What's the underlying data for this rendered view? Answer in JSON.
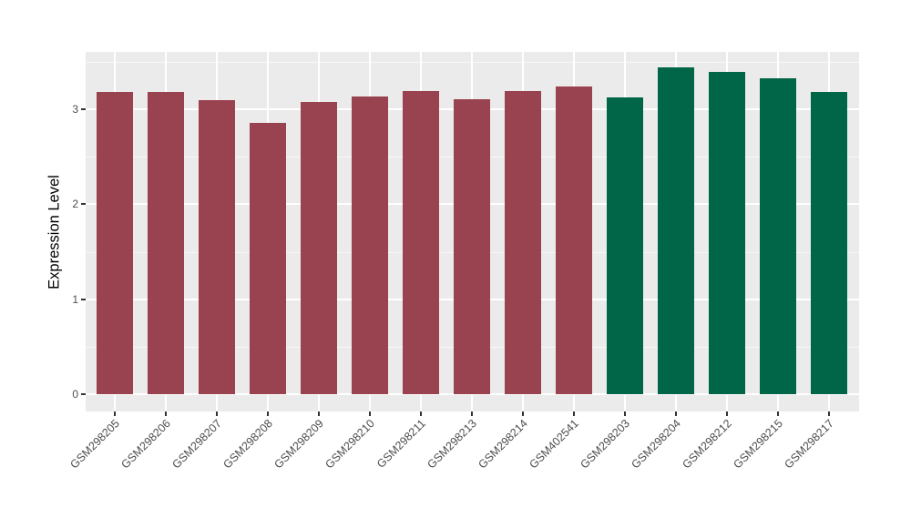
{
  "chart_data": {
    "type": "bar",
    "title": "",
    "xlabel": "",
    "ylabel": "Expression Level",
    "categories": [
      "GSM298205",
      "GSM298206",
      "GSM298207",
      "GSM298208",
      "GSM298209",
      "GSM298210",
      "GSM298211",
      "GSM298213",
      "GSM298214",
      "GSM402541",
      "GSM298203",
      "GSM298204",
      "GSM298212",
      "GSM298215",
      "GSM298217"
    ],
    "values": [
      3.18,
      3.18,
      3.1,
      2.86,
      3.08,
      3.13,
      3.19,
      3.11,
      3.19,
      3.24,
      3.12,
      3.44,
      3.39,
      3.33,
      3.18
    ],
    "bar_colors": [
      "#9A4350",
      "#9A4350",
      "#9A4350",
      "#9A4350",
      "#9A4350",
      "#9A4350",
      "#9A4350",
      "#9A4350",
      "#9A4350",
      "#9A4350",
      "#006647",
      "#006647",
      "#006647",
      "#006647",
      "#006647"
    ],
    "yticks": [
      0,
      1,
      2,
      3
    ],
    "minor_yticks": [
      0.5,
      1.5,
      2.5,
      3.5
    ],
    "ylim": [
      -0.18,
      3.61
    ],
    "grid": "on",
    "legend": "none",
    "x_tick_label_angle": 45,
    "colors": {
      "panel_background": "#EBEBEB",
      "grid": "#FFFFFF",
      "axis_text": "#4D4D4D",
      "axis_title": "#000000",
      "tick_marks": "#333333",
      "figure_background": "#FFFFFF"
    }
  }
}
